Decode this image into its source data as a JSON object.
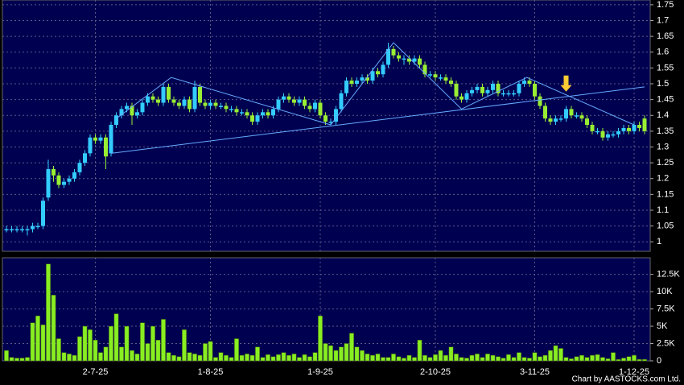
{
  "chart_data": {
    "type": "candlestick",
    "categories": [
      null,
      null,
      null,
      null,
      null,
      null,
      null,
      null,
      null,
      null,
      null,
      null,
      null,
      null,
      null,
      null,
      null,
      "2-7-25",
      null,
      null,
      null,
      null,
      null,
      null,
      null,
      null,
      null,
      null,
      null,
      null,
      null,
      null,
      null,
      null,
      null,
      null,
      null,
      null,
      null,
      "1-8-25",
      null,
      null,
      null,
      null,
      null,
      null,
      null,
      null,
      null,
      null,
      null,
      null,
      null,
      null,
      null,
      null,
      null,
      null,
      null,
      null,
      "1-9-25",
      null,
      null,
      null,
      null,
      null,
      null,
      null,
      null,
      null,
      null,
      null,
      null,
      null,
      null,
      null,
      null,
      null,
      null,
      null,
      null,
      null,
      "2-10-25",
      null,
      null,
      null,
      null,
      null,
      null,
      null,
      null,
      null,
      null,
      null,
      null,
      null,
      null,
      null,
      null,
      null,
      null,
      "3-11-25",
      null,
      null,
      null,
      null,
      null,
      null,
      null,
      null,
      null,
      null,
      null,
      null,
      null,
      null,
      null,
      null,
      null,
      null,
      "1-12-25",
      null,
      null
    ],
    "open": [
      1.04,
      1.04,
      1.04,
      1.04,
      1.04,
      1.04,
      1.05,
      1.05,
      1.14,
      1.23,
      1.21,
      1.18,
      1.19,
      1.2,
      1.22,
      1.25,
      1.28,
      1.33,
      1.32,
      1.33,
      1.28,
      1.37,
      1.4,
      1.42,
      1.43,
      1.4,
      1.41,
      1.44,
      1.46,
      1.45,
      1.44,
      1.49,
      1.45,
      1.44,
      1.43,
      1.45,
      1.42,
      1.49,
      1.44,
      1.43,
      1.44,
      1.43,
      1.43,
      1.42,
      1.42,
      1.41,
      1.41,
      1.4,
      1.38,
      1.4,
      1.41,
      1.4,
      1.42,
      1.45,
      1.46,
      1.45,
      1.44,
      1.45,
      1.43,
      1.42,
      1.44,
      1.4,
      1.38,
      1.38,
      1.42,
      1.47,
      1.51,
      1.5,
      1.51,
      1.52,
      1.51,
      1.54,
      1.53,
      1.56,
      1.61,
      1.59,
      1.58,
      1.58,
      1.57,
      1.58,
      1.56,
      1.53,
      1.53,
      1.52,
      1.52,
      1.51,
      1.5,
      1.46,
      1.45,
      1.47,
      1.48,
      1.49,
      1.47,
      1.48,
      1.5,
      1.47,
      1.47,
      1.47,
      1.47,
      1.5,
      1.51,
      1.5,
      1.46,
      1.43,
      1.39,
      1.38,
      1.39,
      1.39,
      1.42,
      1.4,
      1.4,
      1.39,
      1.37,
      1.35,
      1.35,
      1.33,
      1.34,
      1.34,
      1.35,
      1.36,
      1.35,
      1.37,
      1.39
    ],
    "high": [
      1.05,
      1.05,
      1.05,
      1.05,
      1.05,
      1.06,
      1.06,
      1.14,
      1.26,
      1.24,
      1.22,
      1.2,
      1.21,
      1.23,
      1.26,
      1.29,
      1.34,
      1.34,
      1.34,
      1.34,
      1.38,
      1.41,
      1.43,
      1.44,
      1.44,
      1.42,
      1.45,
      1.47,
      1.47,
      1.46,
      1.5,
      1.5,
      1.46,
      1.45,
      1.46,
      1.46,
      1.51,
      1.5,
      1.45,
      1.45,
      1.45,
      1.44,
      1.44,
      1.43,
      1.43,
      1.42,
      1.42,
      1.41,
      1.41,
      1.42,
      1.42,
      1.43,
      1.46,
      1.47,
      1.47,
      1.46,
      1.46,
      1.46,
      1.44,
      1.45,
      1.45,
      1.41,
      1.39,
      1.43,
      1.48,
      1.52,
      1.52,
      1.52,
      1.53,
      1.53,
      1.55,
      1.55,
      1.57,
      1.63,
      1.62,
      1.6,
      1.59,
      1.59,
      1.59,
      1.59,
      1.57,
      1.54,
      1.54,
      1.53,
      1.53,
      1.52,
      1.51,
      1.47,
      1.48,
      1.49,
      1.5,
      1.5,
      1.49,
      1.51,
      1.51,
      1.48,
      1.48,
      1.48,
      1.51,
      1.52,
      1.52,
      1.51,
      1.47,
      1.44,
      1.4,
      1.4,
      1.4,
      1.43,
      1.43,
      1.41,
      1.41,
      1.4,
      1.38,
      1.36,
      1.36,
      1.35,
      1.35,
      1.36,
      1.37,
      1.37,
      1.38,
      1.38,
      1.4
    ],
    "low": [
      1.03,
      1.03,
      1.03,
      1.03,
      1.02,
      1.03,
      1.04,
      1.04,
      1.13,
      1.19,
      1.17,
      1.17,
      1.18,
      1.19,
      1.21,
      1.24,
      1.27,
      1.31,
      1.31,
      1.23,
      1.27,
      1.36,
      1.39,
      1.41,
      1.37,
      1.39,
      1.4,
      1.43,
      1.44,
      1.43,
      1.43,
      1.44,
      1.43,
      1.42,
      1.42,
      1.41,
      1.41,
      1.43,
      1.42,
      1.42,
      1.42,
      1.42,
      1.41,
      1.41,
      1.4,
      1.4,
      1.39,
      1.37,
      1.37,
      1.39,
      1.39,
      1.39,
      1.41,
      1.44,
      1.44,
      1.43,
      1.43,
      1.42,
      1.41,
      1.41,
      1.39,
      1.37,
      1.37,
      1.37,
      1.41,
      1.46,
      1.49,
      1.49,
      1.5,
      1.5,
      1.5,
      1.52,
      1.52,
      1.55,
      1.58,
      1.57,
      1.56,
      1.56,
      1.56,
      1.55,
      1.52,
      1.52,
      1.51,
      1.51,
      1.5,
      1.49,
      1.45,
      1.44,
      1.44,
      1.46,
      1.47,
      1.46,
      1.46,
      1.47,
      1.46,
      1.46,
      1.46,
      1.46,
      1.46,
      1.49,
      1.49,
      1.45,
      1.42,
      1.38,
      1.37,
      1.37,
      1.38,
      1.38,
      1.39,
      1.39,
      1.38,
      1.36,
      1.34,
      1.34,
      1.32,
      1.32,
      1.33,
      1.33,
      1.34,
      1.34,
      1.34,
      1.35,
      1.34
    ],
    "close": [
      1.04,
      1.04,
      1.04,
      1.04,
      1.04,
      1.05,
      1.05,
      1.13,
      1.23,
      1.21,
      1.18,
      1.19,
      1.2,
      1.22,
      1.25,
      1.28,
      1.33,
      1.32,
      1.33,
      1.27,
      1.37,
      1.4,
      1.42,
      1.43,
      1.4,
      1.41,
      1.44,
      1.46,
      1.45,
      1.44,
      1.49,
      1.45,
      1.44,
      1.43,
      1.45,
      1.42,
      1.49,
      1.44,
      1.43,
      1.44,
      1.43,
      1.43,
      1.42,
      1.42,
      1.41,
      1.41,
      1.4,
      1.38,
      1.4,
      1.41,
      1.4,
      1.42,
      1.45,
      1.46,
      1.45,
      1.44,
      1.45,
      1.43,
      1.42,
      1.44,
      1.4,
      1.38,
      1.38,
      1.42,
      1.47,
      1.51,
      1.5,
      1.51,
      1.52,
      1.51,
      1.54,
      1.53,
      1.56,
      1.61,
      1.59,
      1.58,
      1.58,
      1.57,
      1.58,
      1.56,
      1.53,
      1.53,
      1.52,
      1.52,
      1.51,
      1.5,
      1.46,
      1.45,
      1.47,
      1.48,
      1.49,
      1.47,
      1.48,
      1.5,
      1.47,
      1.47,
      1.47,
      1.47,
      1.5,
      1.51,
      1.5,
      1.46,
      1.43,
      1.39,
      1.38,
      1.39,
      1.39,
      1.42,
      1.4,
      1.4,
      1.39,
      1.37,
      1.35,
      1.35,
      1.33,
      1.34,
      1.34,
      1.35,
      1.36,
      1.35,
      1.37,
      1.36,
      1.35
    ],
    "up_color": "#33ccff",
    "down_color": "#99ee33",
    "ylim": [
      0.97,
      1.765
    ],
    "yticks": [
      1,
      1.05,
      1.1,
      1.15,
      1.2,
      1.25,
      1.3,
      1.35,
      1.4,
      1.45,
      1.5,
      1.55,
      1.6,
      1.65,
      1.7,
      1.75
    ],
    "grid": true,
    "trendlines": [
      {
        "color": "#66aaff",
        "points": [
          [
            20,
            1.28
          ],
          [
            122,
            1.49
          ]
        ]
      },
      {
        "color": "#66aaff",
        "points": [
          [
            21,
            1.39
          ],
          [
            31.5,
            1.52
          ],
          [
            62,
            1.37
          ],
          [
            74,
            1.63
          ],
          [
            87,
            1.42
          ],
          [
            99.5,
            1.52
          ],
          [
            120,
            1.37
          ]
        ]
      }
    ],
    "arrow": {
      "index": 107,
      "price": 1.47,
      "color": "#ffcc33"
    },
    "volume": {
      "color": "#88ee22",
      "values": [
        1500,
        500,
        400,
        400,
        500,
        5500,
        6500,
        5200,
        14000,
        9500,
        3200,
        1200,
        1000,
        800,
        3500,
        5000,
        4500,
        3000,
        1200,
        2000,
        5000,
        6800,
        2000,
        5000,
        1500,
        1000,
        5500,
        2500,
        5000,
        3000,
        6000,
        1200,
        800,
        600,
        4500,
        1200,
        1000,
        800,
        2500,
        2800,
        500,
        1200,
        800,
        500,
        3200,
        800,
        1000,
        800,
        2000,
        500,
        900,
        600,
        900,
        1200,
        800,
        1000,
        500,
        900,
        600,
        1200,
        6500,
        2500,
        2200,
        1500,
        2000,
        2500,
        4000,
        2000,
        1500,
        1000,
        800,
        1000,
        500,
        500,
        1000,
        600,
        400,
        800,
        500,
        3000,
        800,
        500,
        900,
        1500,
        800,
        2000,
        1000,
        500,
        400,
        800,
        1000,
        500,
        1000,
        800,
        600,
        400,
        900,
        500,
        1200,
        500,
        400,
        1200,
        600,
        800,
        1500,
        2200,
        1800,
        500,
        300,
        600,
        800,
        500,
        800,
        900,
        500,
        300,
        1200,
        200,
        400,
        600,
        800,
        200,
        200
      ],
      "ylim": [
        0,
        14900
      ],
      "yticks": [
        0,
        {
          "value": 2500,
          "label": "2.5K"
        },
        {
          "value": 5000,
          "label": "5K"
        },
        {
          "value": 7500,
          "label": "7.5K"
        },
        {
          "value": 10000,
          "label": "10K"
        },
        {
          "value": 12500,
          "label": "12.5K"
        }
      ]
    },
    "credit": "Chart by AASTOCKS.com Ltd."
  }
}
